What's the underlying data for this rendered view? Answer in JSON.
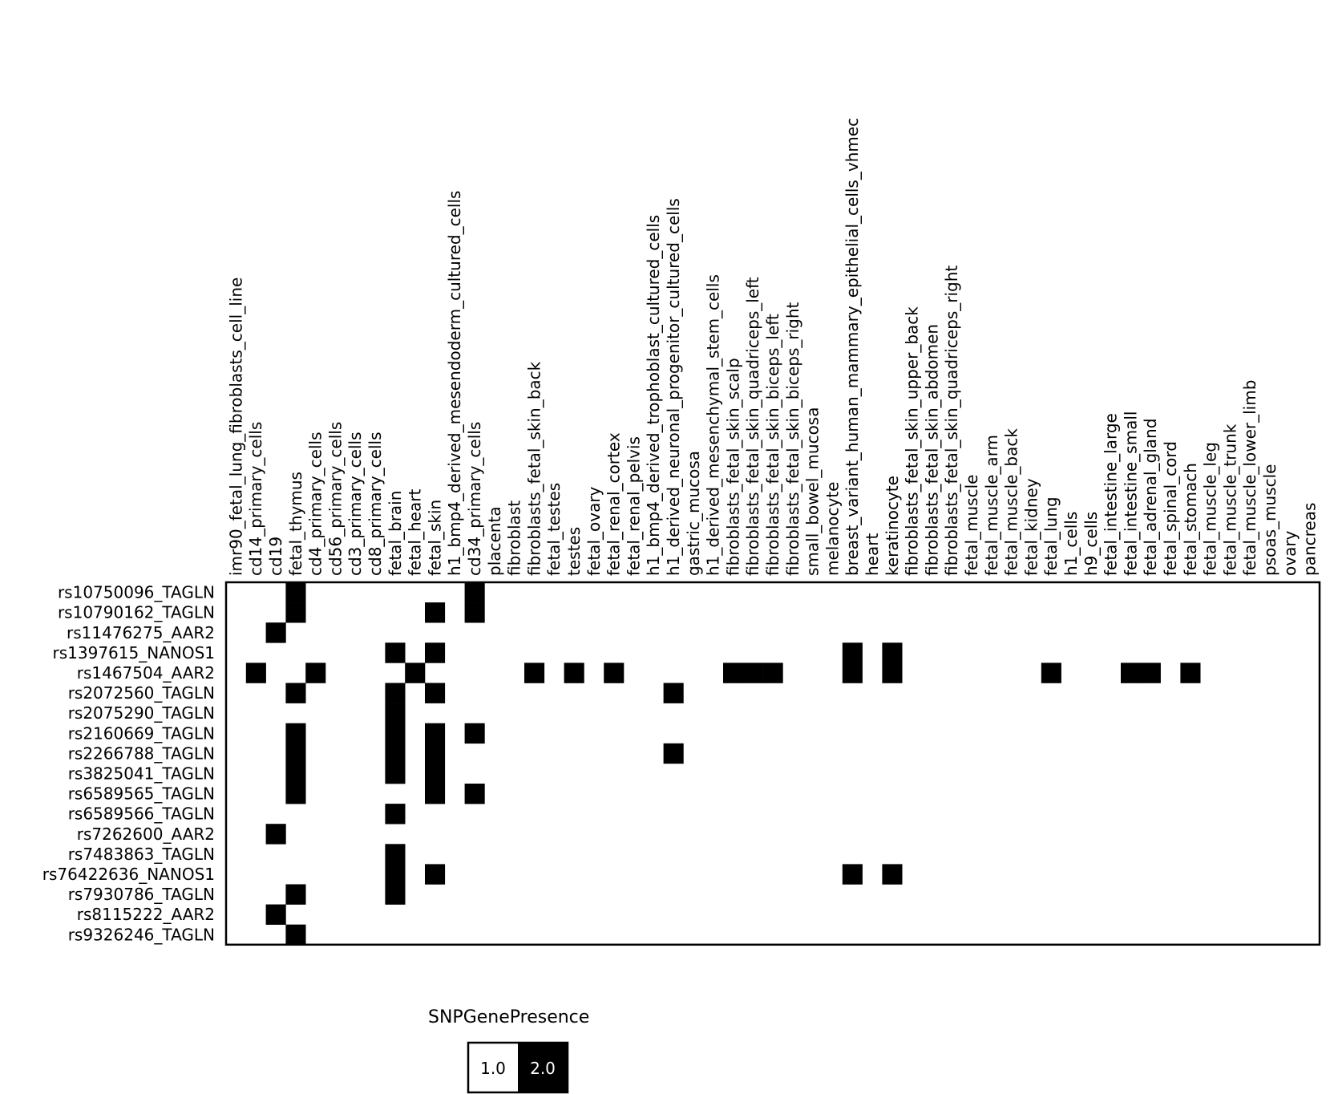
{
  "chart_data": {
    "type": "heatmap",
    "columns": [
      "imr90_fetal_lung_fibroblasts_cell_line",
      "cd14_primary_cells",
      "cd19",
      "fetal_thymus",
      "cd4_primary_cells",
      "cd56_primary_cells",
      "cd3_primary_cells",
      "cd8_primary_cells",
      "fetal_brain",
      "fetal_heart",
      "fetal_skin",
      "h1_bmp4_derived_mesendoderm_cultured_cells",
      "cd34_primary_cells",
      "placenta",
      "fibroblast",
      "fibroblasts_fetal_skin_back",
      "fetal_testes",
      "testes",
      "fetal_ovary",
      "fetal_renal_cortex",
      "fetal_renal_pelvis",
      "h1_bmp4_derived_trophoblast_cultured_cells",
      "h1_derived_neuronal_progenitor_cultured_cells",
      "gastric_mucosa",
      "h1_derived_mesenchymal_stem_cells",
      "fibroblasts_fetal_skin_scalp",
      "fibroblasts_fetal_skin_quadriceps_left",
      "fibroblasts_fetal_skin_biceps_left",
      "fibroblasts_fetal_skin_biceps_right",
      "small_bowel_mucosa",
      "melanocyte",
      "breast_variant_human_mammary_epithelial_cells_vhmec",
      "heart",
      "keratinocyte",
      "fibroblasts_fetal_skin_upper_back",
      "fibroblasts_fetal_skin_abdomen",
      "fibroblasts_fetal_skin_quadriceps_right",
      "fetal_muscle",
      "fetal_muscle_arm",
      "fetal_muscle_back",
      "fetal_kidney",
      "fetal_lung",
      "h1_cells",
      "h9_cells",
      "fetal_intestine_large",
      "fetal_intestine_small",
      "fetal_adrenal_gland",
      "fetal_spinal_cord",
      "fetal_stomach",
      "fetal_muscle_leg",
      "fetal_muscle_trunk",
      "fetal_muscle_lower_limb",
      "psoas_muscle",
      "ovary",
      "pancreas"
    ],
    "rows": [
      "rs10750096_TAGLN",
      "rs10790162_TAGLN",
      "rs11476275_AAR2",
      "rs1397615_NANOS1",
      "rs1467504_AAR2",
      "rs2072560_TAGLN",
      "rs2075290_TAGLN",
      "rs2160669_TAGLN",
      "rs2266788_TAGLN",
      "rs3825041_TAGLN",
      "rs6589565_TAGLN",
      "rs6589566_TAGLN",
      "rs7262600_AAR2",
      "rs7483863_TAGLN",
      "rs76422636_NANOS1",
      "rs7930786_TAGLN",
      "rs8115222_AAR2",
      "rs9326246_TAGLN"
    ],
    "present_cells": [
      [
        "rs10750096_TAGLN",
        [
          "fetal_thymus",
          "cd34_primary_cells"
        ]
      ],
      [
        "rs10790162_TAGLN",
        [
          "fetal_thymus",
          "fetal_skin",
          "cd34_primary_cells"
        ]
      ],
      [
        "rs11476275_AAR2",
        [
          "cd19"
        ]
      ],
      [
        "rs1397615_NANOS1",
        [
          "fetal_brain",
          "fetal_skin",
          "breast_variant_human_mammary_epithelial_cells_vhmec",
          "keratinocyte"
        ]
      ],
      [
        "rs1467504_AAR2",
        [
          "cd14_primary_cells",
          "cd4_primary_cells",
          "fetal_heart",
          "fibroblasts_fetal_skin_back",
          "testes",
          "fetal_renal_cortex",
          "fibroblasts_fetal_skin_scalp",
          "fibroblasts_fetal_skin_quadriceps_left",
          "fibroblasts_fetal_skin_biceps_left",
          "breast_variant_human_mammary_epithelial_cells_vhmec",
          "keratinocyte",
          "fetal_lung",
          "fetal_intestine_small",
          "fetal_adrenal_gland",
          "fetal_stomach"
        ]
      ],
      [
        "rs2072560_TAGLN",
        [
          "fetal_thymus",
          "fetal_brain",
          "fetal_skin",
          "h1_derived_neuronal_progenitor_cultured_cells"
        ]
      ],
      [
        "rs2075290_TAGLN",
        [
          "fetal_brain"
        ]
      ],
      [
        "rs2160669_TAGLN",
        [
          "fetal_thymus",
          "fetal_brain",
          "fetal_skin",
          "cd34_primary_cells"
        ]
      ],
      [
        "rs2266788_TAGLN",
        [
          "fetal_thymus",
          "fetal_brain",
          "fetal_skin",
          "h1_derived_neuronal_progenitor_cultured_cells"
        ]
      ],
      [
        "rs3825041_TAGLN",
        [
          "fetal_thymus",
          "fetal_brain",
          "fetal_skin"
        ]
      ],
      [
        "rs6589565_TAGLN",
        [
          "fetal_thymus",
          "fetal_skin",
          "cd34_primary_cells"
        ]
      ],
      [
        "rs6589566_TAGLN",
        [
          "fetal_brain"
        ]
      ],
      [
        "rs7262600_AAR2",
        [
          "cd19"
        ]
      ],
      [
        "rs7483863_TAGLN",
        [
          "fetal_brain"
        ]
      ],
      [
        "rs76422636_NANOS1",
        [
          "fetal_brain",
          "fetal_skin",
          "breast_variant_human_mammary_epithelial_cells_vhmec",
          "keratinocyte"
        ]
      ],
      [
        "rs7930786_TAGLN",
        [
          "fetal_thymus",
          "fetal_brain"
        ]
      ],
      [
        "rs8115222_AAR2",
        [
          "cd19"
        ]
      ],
      [
        "rs9326246_TAGLN",
        [
          "fetal_thymus"
        ]
      ]
    ],
    "value_absent": 1.0,
    "value_present": 2.0,
    "colors": {
      "1.0": "#ffffff",
      "2.0": "#000000"
    },
    "legend": {
      "title": "SNPGenePresence",
      "entries": [
        {
          "label": "1.0",
          "color": "#ffffff"
        },
        {
          "label": "2.0",
          "color": "#000000"
        }
      ],
      "placement": "bottom-center"
    },
    "grid": false
  }
}
